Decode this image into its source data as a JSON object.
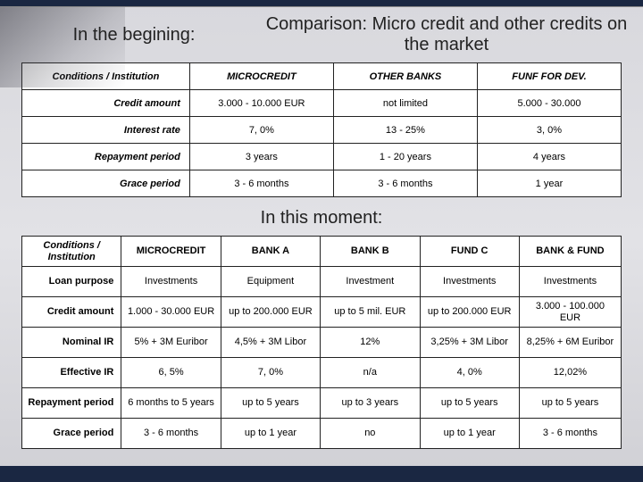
{
  "headings": {
    "left": "In the begining:",
    "right": "Comparison: Micro credit and other credits on the market",
    "mid": "In this moment:"
  },
  "table1": {
    "header": [
      "Conditions / Institution",
      "MICROCREDIT",
      "OTHER BANKS",
      "FUNF FOR DEV."
    ],
    "rows": [
      {
        "label": "Credit amount",
        "cells": [
          "3.000 - 10.000 EUR",
          "not limited",
          "5.000 - 30.000"
        ]
      },
      {
        "label": "Interest rate",
        "cells": [
          "7, 0%",
          "13 - 25%",
          "3, 0%"
        ]
      },
      {
        "label": "Repayment period",
        "cells": [
          "3 years",
          "1 - 20 years",
          "4 years"
        ]
      },
      {
        "label": "Grace period",
        "cells": [
          "3 - 6 months",
          "3 - 6 months",
          "1 year"
        ]
      }
    ]
  },
  "table2": {
    "header": [
      "Conditions / Institution",
      "MICROCREDIT",
      "BANK A",
      "BANK B",
      "FUND C",
      "BANK & FUND"
    ],
    "rows": [
      {
        "label": "Loan purpose",
        "cells": [
          "Investments",
          "Equipment",
          "Investment",
          "Investments",
          "Investments"
        ]
      },
      {
        "label": "Credit amount",
        "cells": [
          "1.000 - 30.000 EUR",
          "up to 200.000 EUR",
          "up to 5 mil. EUR",
          "up to 200.000 EUR",
          "3.000 - 100.000 EUR"
        ]
      },
      {
        "label": "Nominal IR",
        "cells": [
          "5% + 3M Euribor",
          "4,5% + 3M Libor",
          "12%",
          "3,25% + 3M Libor",
          "8,25% + 6M Euribor"
        ]
      },
      {
        "label": "Effective IR",
        "cells": [
          "6, 5%",
          "7, 0%",
          "n/a",
          "4, 0%",
          "12,02%"
        ]
      },
      {
        "label": "Repayment period",
        "cells": [
          "6 months to 5 years",
          "up to 5 years",
          "up to 3 years",
          "up to 5 years",
          "up to 5 years"
        ]
      },
      {
        "label": "Grace period",
        "cells": [
          "3 - 6 months",
          "up to 1 year",
          "no",
          "up to 1 year",
          "3 - 6 months"
        ]
      }
    ]
  },
  "colWidths": {
    "t1": [
      "28%",
      "24%",
      "24%",
      "24%"
    ],
    "t2": [
      "16.6%",
      "16.6%",
      "16.6%",
      "16.6%",
      "16.6%",
      "17%"
    ]
  }
}
